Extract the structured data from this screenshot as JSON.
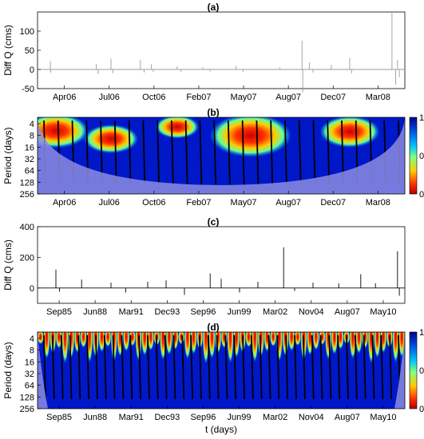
{
  "chart_data": [
    {
      "id": "a",
      "type": "line",
      "title": "(a)",
      "ylabel": "Diff Q (cms)",
      "ylim": [
        -50,
        150
      ],
      "yticks": [
        -50,
        0,
        50,
        100
      ],
      "xticks": [
        "Apr06",
        "Jul06",
        "Oct06",
        "Feb07",
        "May07",
        "Aug07",
        "Dec07",
        "Mar08"
      ],
      "series": [
        {
          "color": "#9a9a9a",
          "spikes": [
            [
              0.035,
              22
            ],
            [
              0.036,
              -8
            ],
            [
              0.16,
              14
            ],
            [
              0.165,
              -12
            ],
            [
              0.2,
              28
            ],
            [
              0.205,
              -10
            ],
            [
              0.28,
              25
            ],
            [
              0.29,
              -8
            ],
            [
              0.31,
              14
            ],
            [
              0.315,
              -6
            ],
            [
              0.38,
              8
            ],
            [
              0.39,
              -6
            ],
            [
              0.45,
              6
            ],
            [
              0.47,
              -5
            ],
            [
              0.54,
              9
            ],
            [
              0.56,
              -6
            ],
            [
              0.66,
              5
            ],
            [
              0.72,
              75
            ],
            [
              0.722,
              -60
            ],
            [
              0.74,
              18
            ],
            [
              0.75,
              -8
            ],
            [
              0.8,
              12
            ],
            [
              0.85,
              30
            ],
            [
              0.855,
              -10
            ],
            [
              0.965,
              150
            ],
            [
              0.975,
              -40
            ],
            [
              0.98,
              25
            ],
            [
              0.985,
              -20
            ]
          ]
        }
      ]
    },
    {
      "id": "b",
      "type": "heatmap",
      "title": "(b)",
      "ylabel": "Period (days)",
      "yticks": [
        4,
        8,
        16,
        32,
        64,
        128,
        256
      ],
      "xticks": [
        "Apr06",
        "Jul06",
        "Oct06",
        "Feb07",
        "May07",
        "Aug07",
        "Dec07",
        "Mar08"
      ],
      "colorbar": {
        "ticks": [
          "0",
          "0.5",
          "1"
        ],
        "colors": [
          "#b00000",
          "#ff2a00",
          "#ffcc00",
          "#80ff80",
          "#00c8ff",
          "#0050e0",
          "#00008c"
        ]
      },
      "hotspots": [
        [
          0.05,
          2.8,
          1.2
        ],
        [
          0.2,
          4.5,
          1.0
        ],
        [
          0.38,
          2.0,
          0.8
        ],
        [
          0.58,
          3.8,
          1.5
        ],
        [
          0.85,
          3.0,
          1.1
        ]
      ]
    },
    {
      "id": "c",
      "type": "line",
      "title": "(c)",
      "ylabel": "Diff Q (cms)",
      "ylim": [
        -100,
        400
      ],
      "yticks": [
        0,
        200,
        400
      ],
      "xticks": [
        "Sep85",
        "Jun88",
        "Mar91",
        "Dec93",
        "Sep96",
        "Jun99",
        "Mar02",
        "Nov04",
        "Aug07",
        "May10"
      ],
      "series": [
        {
          "color": "#000000",
          "spikes": [
            [
              0.05,
              120
            ],
            [
              0.06,
              -25
            ],
            [
              0.12,
              55
            ],
            [
              0.2,
              35
            ],
            [
              0.24,
              -30
            ],
            [
              0.3,
              40
            ],
            [
              0.35,
              50
            ],
            [
              0.4,
              -45
            ],
            [
              0.47,
              95
            ],
            [
              0.5,
              60
            ],
            [
              0.55,
              -30
            ],
            [
              0.6,
              40
            ],
            [
              0.67,
              265
            ],
            [
              0.7,
              -20
            ],
            [
              0.75,
              35
            ],
            [
              0.82,
              30
            ],
            [
              0.88,
              90
            ],
            [
              0.92,
              30
            ],
            [
              0.98,
              240
            ],
            [
              0.985,
              -50
            ]
          ]
        }
      ]
    },
    {
      "id": "d",
      "type": "heatmap",
      "title": "(d)",
      "ylabel": "Period (days)",
      "xlabel": "t (days)",
      "yticks": [
        4,
        8,
        16,
        32,
        64,
        128,
        256
      ],
      "xticks": [
        "Sep85",
        "Jun88",
        "Mar91",
        "Dec93",
        "Sep96",
        "Jun99",
        "Mar02",
        "Nov04",
        "Aug07",
        "May10"
      ],
      "colorbar": {
        "ticks": [
          "0",
          "0.5",
          "1"
        ],
        "colors": [
          "#b00000",
          "#ff2a00",
          "#ffcc00",
          "#80ff80",
          "#00c8ff",
          "#0050e0",
          "#00008c"
        ]
      }
    }
  ]
}
